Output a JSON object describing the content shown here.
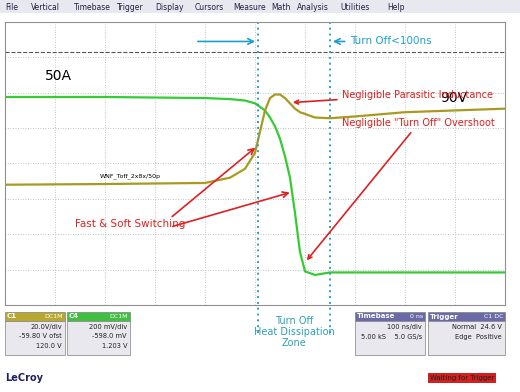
{
  "chart_data": {
    "type": "line",
    "menu": [
      "File",
      "Vertical",
      "Timebase",
      "Trigger",
      "Display",
      "Cursors",
      "Measure",
      "Math",
      "Analysis",
      "Utilities",
      "Help"
    ],
    "x": [
      0,
      2,
      4,
      4.5,
      4.8,
      5.0,
      5.1,
      5.2,
      5.3,
      5.4,
      5.5,
      5.6,
      5.7,
      5.8,
      5.9,
      6.0,
      6.2,
      6.5,
      7,
      8,
      9,
      10
    ],
    "series": [
      {
        "name": "C4",
        "color": "#33cc33",
        "values": [
          5.88,
          5.88,
          5.85,
          5.82,
          5.78,
          5.7,
          5.6,
          5.5,
          5.3,
          5.05,
          4.7,
          4.2,
          3.6,
          2.6,
          1.5,
          0.95,
          0.85,
          0.92,
          0.92,
          0.92,
          0.92,
          0.92
        ]
      },
      {
        "name": "C1",
        "color": "#a89a20",
        "values": [
          3.4,
          3.42,
          3.45,
          3.6,
          3.85,
          4.3,
          4.9,
          5.5,
          5.85,
          5.95,
          5.95,
          5.85,
          5.7,
          5.55,
          5.45,
          5.4,
          5.3,
          5.28,
          5.33,
          5.45,
          5.5,
          5.55
        ]
      }
    ],
    "xlim": [
      0,
      10
    ],
    "ylim": [
      0,
      8
    ],
    "xticks": [
      0,
      1,
      2,
      3,
      4,
      5,
      6,
      7,
      8,
      9,
      10
    ],
    "yticks": [
      0,
      1,
      2,
      3,
      4,
      5,
      6,
      7,
      8
    ],
    "grid": true,
    "tick_labels": false,
    "cursors": [
      5.06,
      6.5
    ],
    "reference_level": 7.15,
    "annotations": [
      {
        "text": "50A",
        "color": "#000000"
      },
      {
        "text": "90V",
        "color": "#000000"
      },
      {
        "text": "Turn Off<100ns",
        "color": "#1f9fd0"
      },
      {
        "text": "Negligible Parasitic Inductance",
        "color": "#e02020"
      },
      {
        "text": "Negligible \"Turn Off\" Overshoot",
        "color": "#e02020"
      },
      {
        "text": "Fast & Soft Switching",
        "color": "#e02020"
      },
      {
        "text": "WNF_Toff_2x8x/50p",
        "color": "#000000"
      },
      {
        "text": "Turn Off\nHeat Dissipation\nZone",
        "color": "#30a0b0"
      }
    ],
    "panels": [
      {
        "name": "C1",
        "header": "DC1M",
        "color": "#b8a830",
        "lines": [
          "20.0V/div",
          "-59.80 V ofst",
          "120.0 V"
        ]
      },
      {
        "name": "C4",
        "header": "DC1M",
        "color": "#40c040",
        "lines": [
          "200 mV/div",
          "-598.0 mV",
          "1.203 V"
        ]
      },
      {
        "name": "Timebase",
        "header": "0 ns",
        "color": "#6a6aa8",
        "lines": [
          "100 ns/div",
          "5.00 kS    5.0 GS/s"
        ]
      },
      {
        "name": "Trigger",
        "header": "C1 DC",
        "color": "#6a6aa8",
        "lines": [
          "Normal  24.6 V",
          "Edge  Positive"
        ]
      }
    ],
    "brand": "LeCroy",
    "status": "Waiting for Trigger"
  }
}
